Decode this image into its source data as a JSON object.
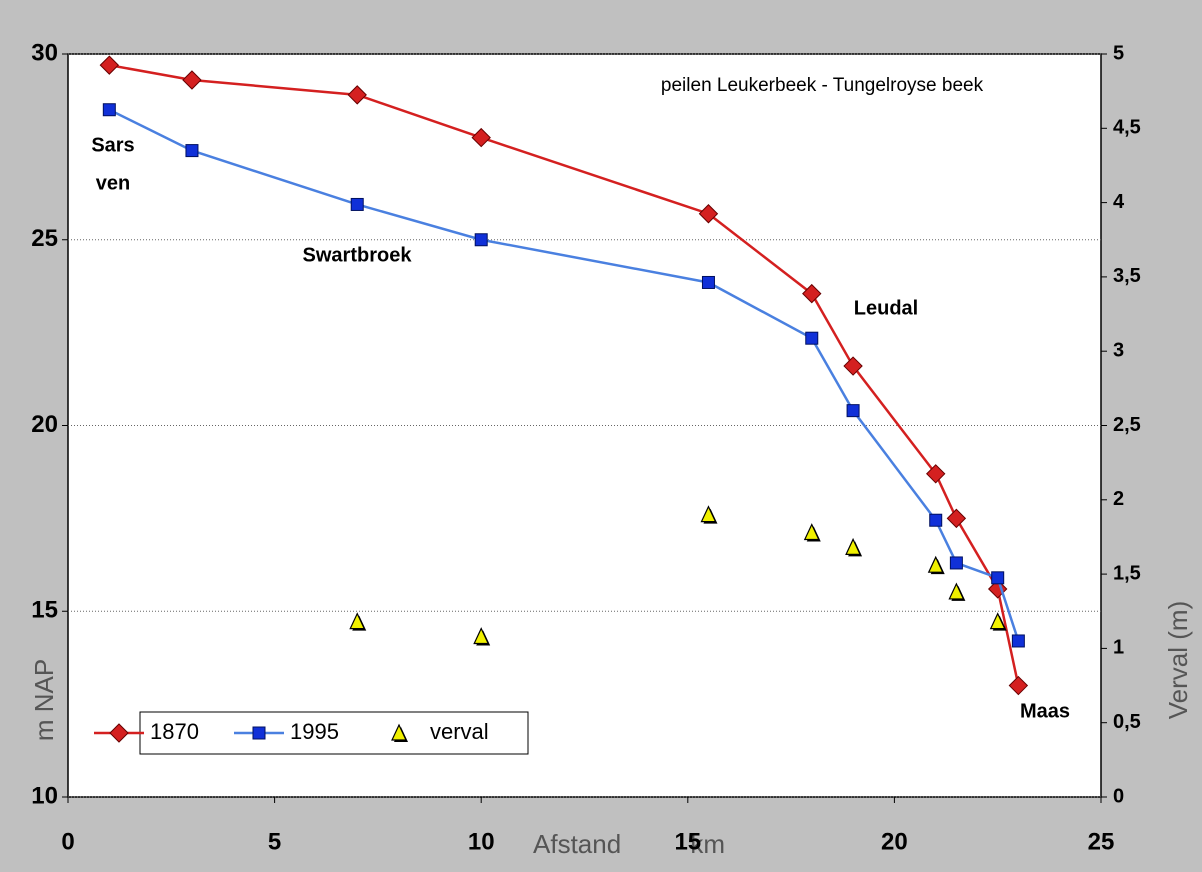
{
  "chart_data": {
    "type": "line",
    "title": "peilen Leukerbeek - Tungelroyse beek",
    "x_label": "Afstand km",
    "y_label": "m NAP",
    "y2_label": "Verval (m)",
    "annotations": [
      "Sars",
      "ven",
      "Swartbroek",
      "Leudal",
      "Maas"
    ],
    "xlim": [
      0,
      25
    ],
    "xticks": [
      0,
      5,
      10,
      15,
      20,
      25
    ],
    "ylim": [
      10,
      30
    ],
    "yticks": [
      10,
      15,
      20,
      25,
      30
    ],
    "y2lim": [
      0,
      5
    ],
    "y2ticks": [
      0,
      {
        "value": 0.5,
        "label": "0,5"
      },
      1,
      {
        "value": 1.5,
        "label": "1,5"
      },
      2,
      {
        "value": 2.5,
        "label": "2,5"
      },
      3,
      {
        "value": 3.5,
        "label": "3,5"
      },
      4,
      {
        "value": 4.5,
        "label": "4,5"
      },
      5
    ],
    "grid": true,
    "legend": "lower left",
    "series": [
      {
        "name": "1870",
        "color": "#d42020",
        "marker": "diamond",
        "x": [
          1,
          3,
          7,
          10,
          15.5,
          18,
          19,
          21,
          21.5,
          22.5,
          23
        ],
        "values": [
          29.7,
          29.3,
          28.9,
          27.75,
          25.7,
          23.55,
          21.6,
          18.7,
          17.5,
          15.6,
          13.0
        ]
      },
      {
        "name": "1995",
        "color": "#4a80e0",
        "marker": "square",
        "x": [
          1,
          3,
          7,
          10,
          15.5,
          18,
          19,
          21,
          21.5,
          22.5,
          23
        ],
        "values": [
          28.5,
          27.4,
          25.95,
          25.0,
          23.85,
          22.35,
          20.4,
          17.45,
          16.3,
          15.9,
          14.2
        ]
      },
      {
        "name": "verval",
        "color": "#f0f000",
        "marker": "triangle",
        "axis": "y2",
        "x": [
          7,
          10,
          15.5,
          18,
          19,
          21,
          21.5,
          22.5
        ],
        "values": [
          1.18,
          1.08,
          1.9,
          1.78,
          1.68,
          1.56,
          1.38,
          1.18
        ]
      }
    ]
  }
}
